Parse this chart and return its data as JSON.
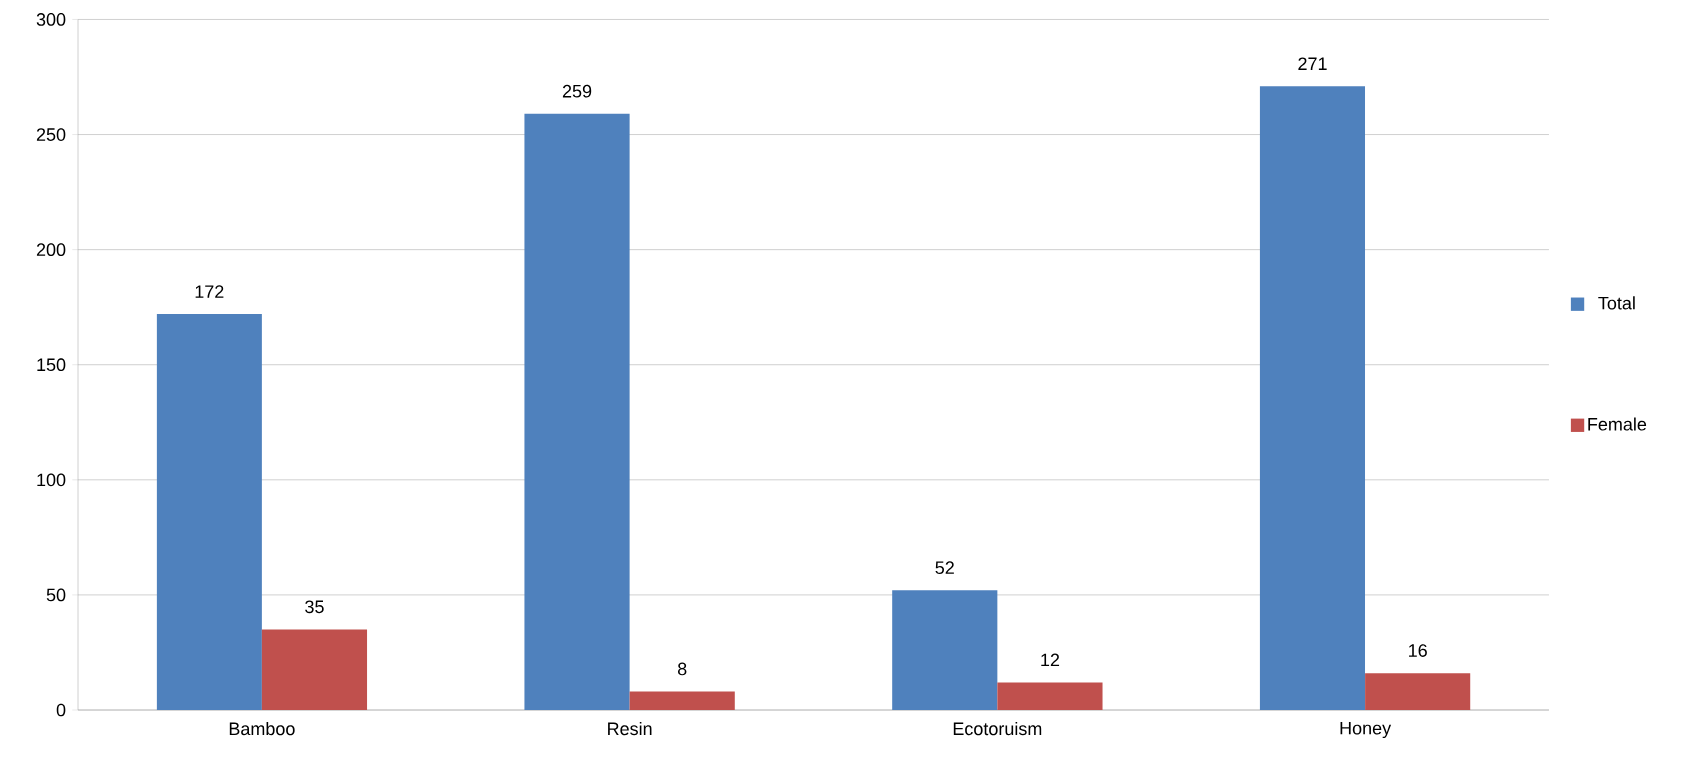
{
  "chart_data": {
    "type": "bar",
    "categories": [
      "Bamboo",
      "Resin",
      "Ecotoruism",
      "Honey"
    ],
    "series": [
      {
        "name": "Total",
        "color": "#4f81bd",
        "values": [
          172,
          259,
          52,
          271
        ]
      },
      {
        "name": "Female",
        "color": "#c0504d",
        "values": [
          35,
          8,
          12,
          16
        ]
      }
    ],
    "ylim": [
      0,
      300
    ],
    "yticks": [
      0,
      50,
      100,
      150,
      200,
      250,
      300
    ],
    "grid": "y",
    "legend": "right",
    "data_labels": true
  }
}
